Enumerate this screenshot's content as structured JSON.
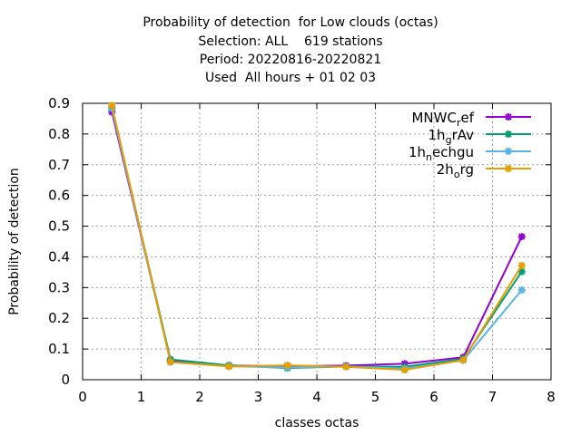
{
  "chart_data": {
    "type": "line",
    "title_lines": [
      "Probability of detection  for Low clouds (octas)",
      "Selection: ALL    619 stations",
      "Period: 20220816-20220821",
      "Used  All hours + 01 02 03"
    ],
    "xlabel": "classes octas",
    "ylabel": "Probability of detection",
    "xlim": [
      0,
      8
    ],
    "ylim": [
      0,
      0.9
    ],
    "x_ticks": [
      "0",
      "1",
      "2",
      "3",
      "4",
      "5",
      "6",
      "7",
      "8"
    ],
    "y_ticks": [
      "0",
      "0.1",
      "0.2",
      "0.3",
      "0.4",
      "0.5",
      "0.6",
      "0.7",
      "0.8",
      "0.9"
    ],
    "grid": true,
    "legend_position": "top-right",
    "x": [
      0.5,
      1.5,
      2.5,
      3.5,
      4.5,
      5.5,
      6.5,
      7.5
    ],
    "series": [
      {
        "name": "MNWC_ref",
        "label_main": "MNWC",
        "label_sub": "r",
        "label_tail": "ef",
        "color": "#9400d3",
        "values": [
          0.872,
          0.062,
          0.046,
          0.044,
          0.046,
          0.052,
          0.073,
          0.466
        ]
      },
      {
        "name": "1h_grAv",
        "label_main": "1h",
        "label_sub": "g",
        "label_tail": "rAv",
        "color": "#009e73",
        "values": [
          0.885,
          0.066,
          0.047,
          0.038,
          0.043,
          0.042,
          0.068,
          0.352
        ]
      },
      {
        "name": "1h_nechgu",
        "label_main": "1h",
        "label_sub": "n",
        "label_tail": "echgu",
        "color": "#56b4e9",
        "values": [
          0.883,
          0.057,
          0.044,
          0.04,
          0.043,
          0.036,
          0.063,
          0.292
        ]
      },
      {
        "name": "2h_org",
        "label_main": "2h",
        "label_sub": "o",
        "label_tail": "rg",
        "color": "#e69f00",
        "values": [
          0.893,
          0.058,
          0.043,
          0.047,
          0.042,
          0.032,
          0.064,
          0.372
        ]
      }
    ]
  }
}
